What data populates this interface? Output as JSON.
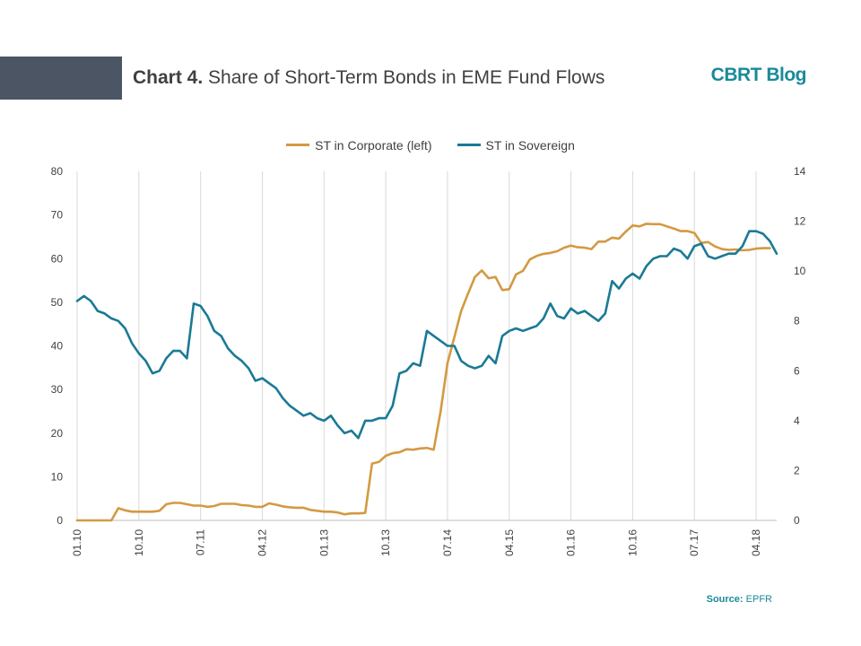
{
  "header": {
    "title_prefix": "Chart 4.",
    "title_text": "Share of Short-Term Bonds in EME Fund Flows",
    "blog_name": "CBRT Blog",
    "logo_icon": "bar-chart-icon"
  },
  "footer": {
    "source_label": "Source:",
    "source_value": "EPFR"
  },
  "colors": {
    "corporate": "#d39a42",
    "sovereign": "#1a7a95",
    "header_block": "#4b5563",
    "accent": "#1a8a9a"
  },
  "chart_data": {
    "type": "line",
    "legend_position": "top-center",
    "grid": "vertical",
    "x_ticks": [
      "01.10",
      "10.10",
      "07.11",
      "04.12",
      "01.13",
      "10.13",
      "07.14",
      "04.15",
      "01.16",
      "10.16",
      "07.17",
      "04.18"
    ],
    "x_tick_month_index": [
      0,
      9,
      18,
      27,
      36,
      45,
      54,
      63,
      72,
      81,
      90,
      99
    ],
    "x_range": [
      0,
      102
    ],
    "y_left": {
      "min": 0,
      "max": 80,
      "ticks": [
        0,
        10,
        20,
        30,
        40,
        50,
        60,
        70,
        80
      ]
    },
    "y_right": {
      "min": 0,
      "max": 14,
      "ticks": [
        0,
        2,
        4,
        6,
        8,
        10,
        12,
        14
      ]
    },
    "series": [
      {
        "name": "ST in Corporate (left)",
        "axis": "left",
        "values": [
          0,
          0,
          0,
          0,
          0,
          0,
          2.8,
          2.3,
          2,
          2,
          2,
          2,
          2.2,
          3.7,
          4,
          4,
          3.7,
          3.4,
          3.4,
          3.1,
          3.3,
          3.8,
          3.8,
          3.8,
          3.5,
          3.4,
          3.1,
          3.1,
          3.9,
          3.6,
          3.2,
          3,
          2.9,
          2.9,
          2.4,
          2.2,
          2,
          2,
          1.8,
          1.4,
          1.6,
          1.6,
          1.7,
          13,
          13.4,
          14.8,
          15.4,
          15.6,
          16.3,
          16.2,
          16.5,
          16.6,
          16.2,
          25,
          36,
          42,
          48,
          52,
          55.8,
          57.3,
          55.5,
          55.8,
          52.8,
          53,
          56.4,
          57.2,
          59.8,
          60.6,
          61.1,
          61.3,
          61.7,
          62.5,
          63,
          62.6,
          62.5,
          62.2,
          63.9,
          63.9,
          64.8,
          64.6,
          66.2,
          67.6,
          67.4,
          68,
          67.9,
          67.9,
          67.4,
          66.9,
          66.3,
          66.3,
          65.9,
          63.6,
          63.8,
          62.8,
          62.2,
          62,
          62.1,
          61.9,
          62,
          62.3,
          62.4,
          62.4
        ],
        "color_key": "corporate"
      },
      {
        "name": "ST in Sovereign",
        "axis": "right",
        "values": [
          8.8,
          9,
          8.8,
          8.4,
          8.3,
          8.1,
          8,
          7.7,
          7.1,
          6.7,
          6.4,
          5.9,
          6,
          6.5,
          6.8,
          6.8,
          6.5,
          8.7,
          8.6,
          8.2,
          7.6,
          7.4,
          6.9,
          6.6,
          6.4,
          6.1,
          5.6,
          5.7,
          5.5,
          5.3,
          4.9,
          4.6,
          4.4,
          4.2,
          4.3,
          4.1,
          4,
          4.2,
          3.8,
          3.5,
          3.6,
          3.3,
          4,
          4,
          4.1,
          4.1,
          4.6,
          5.9,
          6,
          6.3,
          6.2,
          7.6,
          7.4,
          7.2,
          7,
          7,
          6.4,
          6.2,
          6.1,
          6.2,
          6.6,
          6.3,
          7.4,
          7.6,
          7.7,
          7.6,
          7.7,
          7.8,
          8.1,
          8.7,
          8.2,
          8.1,
          8.5,
          8.3,
          8.4,
          8.2,
          8,
          8.3,
          9.6,
          9.3,
          9.7,
          9.9,
          9.7,
          10.2,
          10.5,
          10.6,
          10.6,
          10.9,
          10.8,
          10.5,
          11,
          11.1,
          10.6,
          10.5,
          10.6,
          10.7,
          10.7,
          11,
          11.6,
          11.6,
          11.5,
          11.2,
          10.7
        ],
        "color_key": "sovereign"
      }
    ]
  }
}
